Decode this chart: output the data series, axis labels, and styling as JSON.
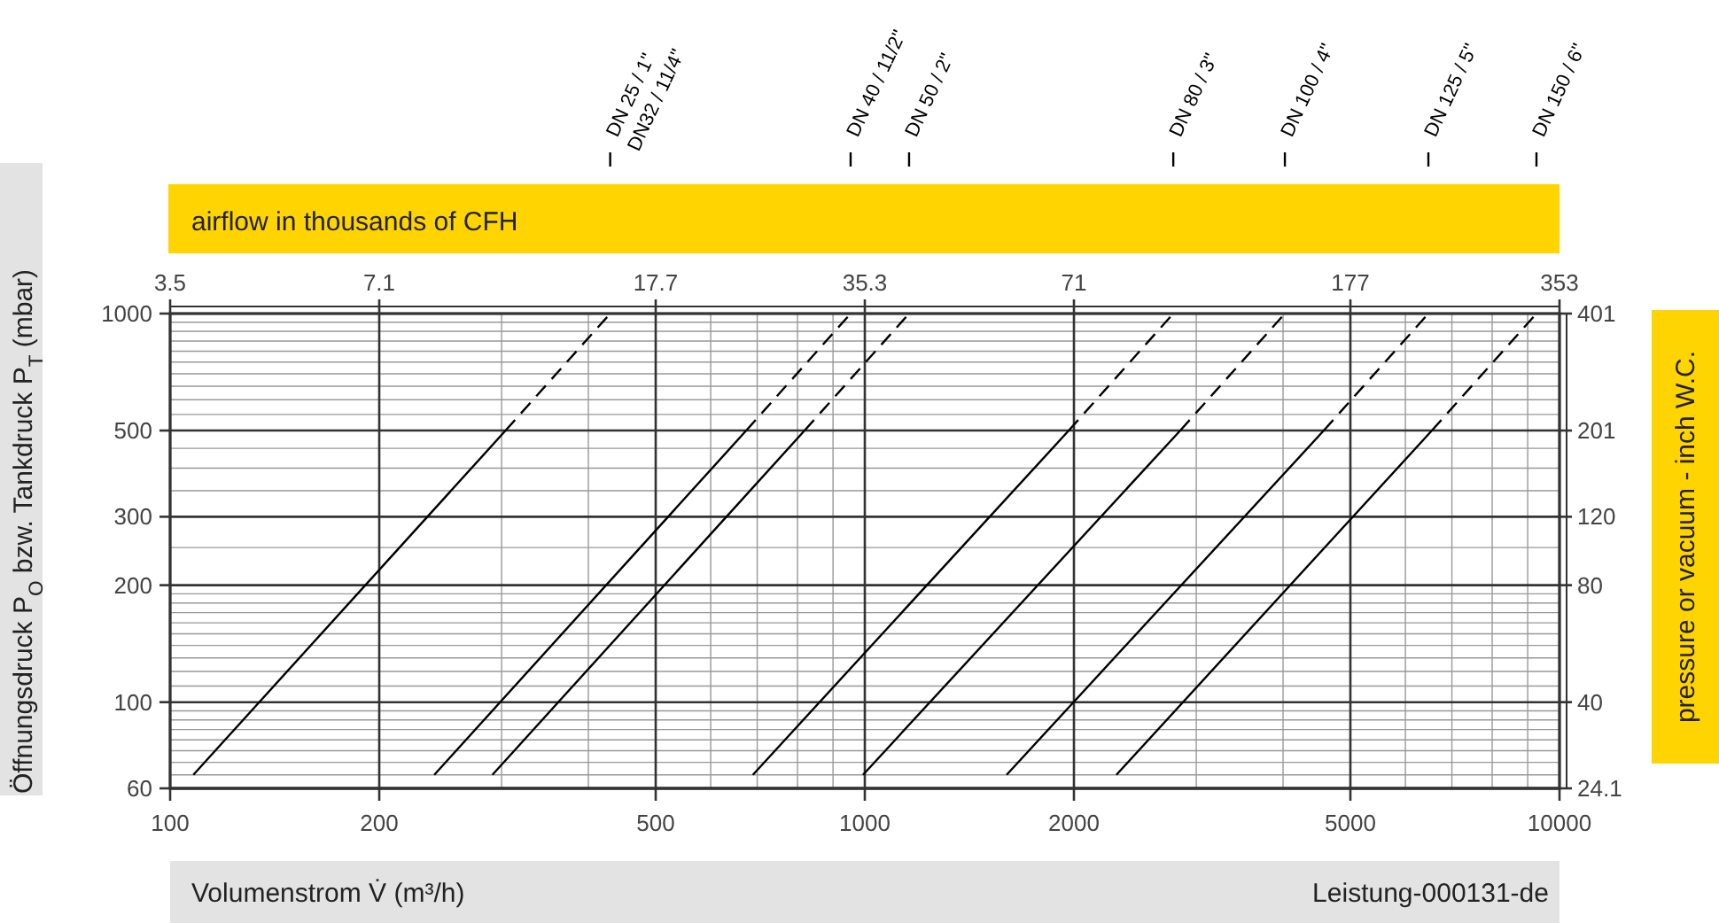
{
  "chart_data": {
    "type": "line",
    "xlabel": "Volumenstrom V̇ (m³/h)",
    "ylabel": "Öffnungsdruck P$_{O}$ bzw. Tankdruck P$_{T}$ (mbar)",
    "y2label": "pressure or vacuum - inch W.C.",
    "x2label": "airflow in thousands of CFH",
    "log": "xy",
    "grid": true,
    "xlim": [
      100,
      10000
    ],
    "xticks": [
      100,
      200,
      500,
      1000,
      2000,
      5000,
      10000
    ],
    "ylim": [
      60,
      1000
    ],
    "yticks": [
      60,
      100,
      200,
      300,
      500,
      1000
    ],
    "series": [
      {
        "color": "#000000",
        "line_style": "solid",
        "x": [
          108,
          304
        ],
        "values": [
          65,
          500
        ]
      },
      {
        "color": "#000000",
        "line_style": "dashed",
        "x": [
          304,
          430
        ],
        "values": [
          500,
          1000
        ]
      },
      {
        "color": "#000000",
        "line_style": "solid",
        "x": [
          240,
          675
        ],
        "values": [
          65,
          500
        ]
      },
      {
        "color": "#000000",
        "line_style": "dashed",
        "x": [
          675,
          954
        ],
        "values": [
          500,
          1000
        ]
      },
      {
        "color": "#000000",
        "line_style": "solid",
        "x": [
          291,
          819
        ],
        "values": [
          65,
          500
        ]
      },
      {
        "color": "#000000",
        "line_style": "dashed",
        "x": [
          819,
          1158
        ],
        "values": [
          500,
          1000
        ]
      },
      {
        "color": "#000000",
        "line_style": "solid",
        "x": [
          690,
          1966
        ],
        "values": [
          65,
          500
        ]
      },
      {
        "color": "#000000",
        "line_style": "dashed",
        "x": [
          1966,
          2780
        ],
        "values": [
          500,
          1000
        ]
      },
      {
        "color": "#000000",
        "line_style": "solid",
        "x": [
          994,
          2845
        ],
        "values": [
          65,
          500
        ]
      },
      {
        "color": "#000000",
        "line_style": "dashed",
        "x": [
          2845,
          4024
        ],
        "values": [
          500,
          1000
        ]
      },
      {
        "color": "#000000",
        "line_style": "solid",
        "x": [
          1600,
          4578
        ],
        "values": [
          65,
          500
        ]
      },
      {
        "color": "#000000",
        "line_style": "dashed",
        "x": [
          4578,
          6475
        ],
        "values": [
          500,
          1000
        ]
      },
      {
        "color": "#000000",
        "line_style": "solid",
        "x": [
          2302,
          6551
        ],
        "values": [
          65,
          500
        ]
      },
      {
        "color": "#000000",
        "line_style": "dashed",
        "x": [
          6551,
          9265
        ],
        "values": [
          500,
          1000
        ]
      }
    ],
    "annotations": [
      "DN32 /  11/4\"",
      "Leistung-000131-de",
      "3.5",
      "7.1",
      "17.7",
      "35.3",
      "71",
      "177",
      "353",
      "24.1",
      "40",
      "80",
      "120",
      "201",
      "401",
      "DN 25 / 1\"",
      "DN 40 / 11/2\"",
      "DN 50 / 2\"",
      "DN 80 / 3\"",
      "DN 100 / 4\"",
      "DN 125 / 5\"",
      "DN 150 / 6\""
    ]
  }
}
